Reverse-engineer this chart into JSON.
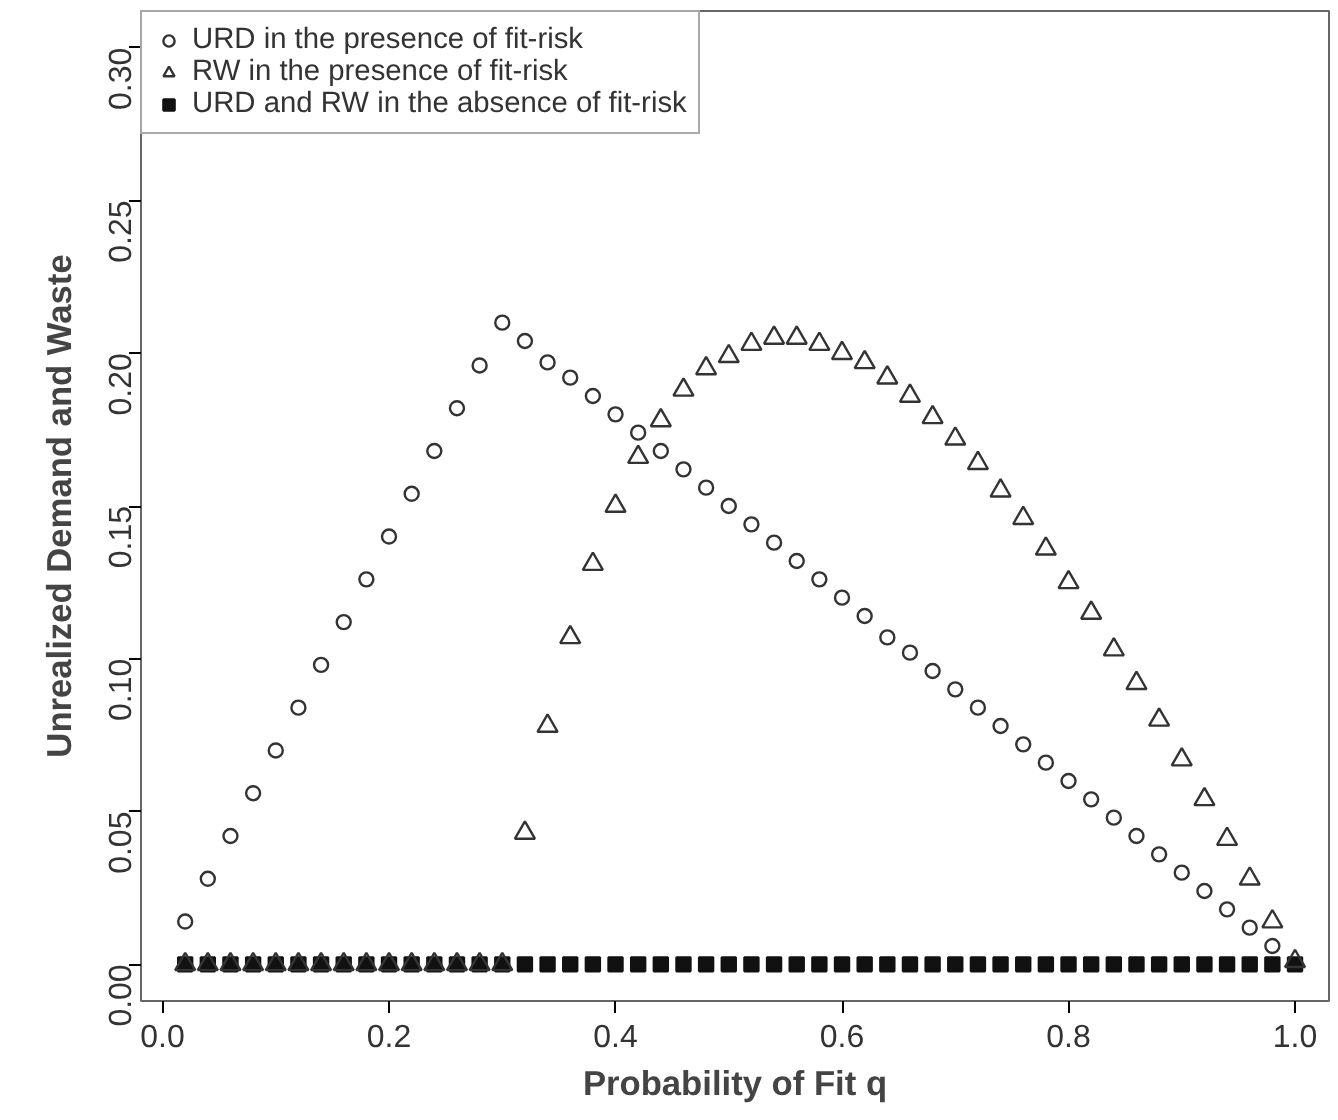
{
  "chart_data": {
    "type": "scatter",
    "xlabel": "Probability of Fit q",
    "ylabel": "Unrealized Demand and Waste",
    "xlim": [
      -0.019,
      1.03
    ],
    "ylim": [
      -0.012,
      0.312
    ],
    "xticks": [
      {
        "value": 0,
        "label": "0.0"
      },
      0.2,
      0.4,
      0.6,
      0.8,
      {
        "value": 1,
        "label": "1.0"
      }
    ],
    "yticks": [
      {
        "value": 0,
        "label": "0.00"
      },
      0.05,
      {
        "value": 0.1,
        "label": "0.10"
      },
      0.15,
      {
        "value": 0.2,
        "label": "0.20"
      },
      0.25,
      {
        "value": 0.3,
        "label": "0.30"
      }
    ],
    "grid": false,
    "legend": "top left",
    "series": [
      {
        "name": "URD in the presence of fit-risk",
        "color": "#333333",
        "marker": "circle",
        "x": [
          0.02,
          0.04,
          0.06,
          0.08,
          0.1,
          0.12,
          0.14,
          0.16,
          0.18,
          0.2,
          0.22,
          0.24,
          0.26,
          0.28,
          0.3,
          0.32,
          0.34,
          0.36,
          0.38,
          0.4,
          0.42,
          0.44,
          0.46,
          0.48,
          0.5,
          0.52,
          0.54,
          0.56,
          0.58,
          0.6,
          0.62,
          0.64,
          0.66,
          0.68,
          0.7,
          0.72,
          0.74,
          0.76,
          0.78,
          0.8,
          0.82,
          0.84,
          0.86,
          0.88,
          0.9,
          0.92,
          0.94,
          0.96,
          0.98
        ],
        "values": [
          0.014,
          0.028,
          0.042,
          0.056,
          0.07,
          0.084,
          0.098,
          0.112,
          0.126,
          0.14,
          0.154,
          0.168,
          0.182,
          0.196,
          0.21,
          0.204,
          0.197,
          0.192,
          0.186,
          0.18,
          0.174,
          0.168,
          0.162,
          0.156,
          0.15,
          0.144,
          0.138,
          0.132,
          0.126,
          0.12,
          0.114,
          0.107,
          0.102,
          0.096,
          0.09,
          0.084,
          0.078,
          0.072,
          0.066,
          0.06,
          0.054,
          0.048,
          0.042,
          0.036,
          0.03,
          0.024,
          0.018,
          0.012,
          0.006
        ]
      },
      {
        "name": "RW in the presence of fit-risk",
        "color": "#333333",
        "marker": "triangle",
        "x": [
          0.02,
          0.04,
          0.06,
          0.08,
          0.1,
          0.12,
          0.14,
          0.16,
          0.18,
          0.2,
          0.22,
          0.24,
          0.26,
          0.28,
          0.3,
          0.32,
          0.34,
          0.36,
          0.38,
          0.4,
          0.42,
          0.44,
          0.46,
          0.48,
          0.5,
          0.52,
          0.54,
          0.56,
          0.58,
          0.6,
          0.62,
          0.64,
          0.66,
          0.68,
          0.7,
          0.72,
          0.74,
          0.76,
          0.78,
          0.8,
          0.82,
          0.84,
          0.86,
          0.88,
          0.9,
          0.92,
          0.94,
          0.96,
          0.98,
          1.0
        ],
        "values": [
          0,
          0,
          0,
          0,
          0,
          0,
          0,
          0,
          0,
          0,
          0,
          0,
          0,
          0,
          0,
          0.043,
          0.078,
          0.107,
          0.131,
          0.15,
          0.166,
          0.178,
          0.188,
          0.195,
          0.199,
          0.203,
          0.205,
          0.205,
          0.203,
          0.2,
          0.197,
          0.192,
          0.186,
          0.179,
          0.172,
          0.164,
          0.155,
          0.146,
          0.136,
          0.125,
          0.115,
          0.103,
          0.092,
          0.08,
          0.067,
          0.054,
          0.041,
          0.028,
          0.014,
          0.001
        ]
      },
      {
        "name": "URD and RW in the absence of fit-risk",
        "color": "#111111",
        "marker": "square",
        "x": [
          0.02,
          0.04,
          0.06,
          0.08,
          0.1,
          0.12,
          0.14,
          0.16,
          0.18,
          0.2,
          0.22,
          0.24,
          0.26,
          0.28,
          0.3,
          0.32,
          0.34,
          0.36,
          0.38,
          0.4,
          0.42,
          0.44,
          0.46,
          0.48,
          0.5,
          0.52,
          0.54,
          0.56,
          0.58,
          0.6,
          0.62,
          0.64,
          0.66,
          0.68,
          0.7,
          0.72,
          0.74,
          0.76,
          0.78,
          0.8,
          0.82,
          0.84,
          0.86,
          0.88,
          0.9,
          0.92,
          0.94,
          0.96,
          0.98,
          1.0
        ],
        "values": [
          0,
          0,
          0,
          0,
          0,
          0,
          0,
          0,
          0,
          0,
          0,
          0,
          0,
          0,
          0,
          0,
          0,
          0,
          0,
          0,
          0,
          0,
          0,
          0,
          0,
          0,
          0,
          0,
          0,
          0,
          0,
          0,
          0,
          0,
          0,
          0,
          0,
          0,
          0,
          0,
          0,
          0,
          0,
          0,
          0,
          0,
          0,
          0,
          0,
          0
        ]
      }
    ]
  }
}
